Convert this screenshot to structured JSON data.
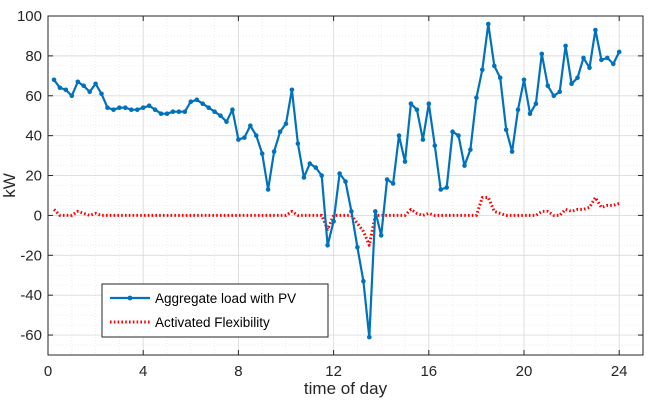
{
  "chart_data": {
    "type": "line",
    "title": "",
    "xlabel": "time of day",
    "ylabel": "kW",
    "xlim": [
      0,
      25
    ],
    "ylim": [
      -70,
      100
    ],
    "xticks": [
      0,
      4,
      8,
      12,
      16,
      20,
      24
    ],
    "xtick_labels": [
      "0",
      "4",
      "8",
      "12",
      "16",
      "20",
      "24"
    ],
    "yticks": [
      100,
      80,
      60,
      40,
      20,
      0,
      -20,
      -40,
      -60
    ],
    "ytick_labels": [
      "100",
      "80",
      "60",
      "40",
      "20",
      "0",
      "-20",
      "-40",
      "-60"
    ],
    "grid": true,
    "minor_grid": true,
    "legend_position": "lower-left",
    "series": [
      {
        "name": "Aggregate load with PV",
        "color": "#0072BD",
        "style": "solid-dot",
        "x": [
          0.25,
          0.5,
          0.75,
          1.0,
          1.25,
          1.5,
          1.75,
          2.0,
          2.25,
          2.5,
          2.75,
          3.0,
          3.25,
          3.5,
          3.75,
          4.0,
          4.25,
          4.5,
          4.75,
          5.0,
          5.25,
          5.5,
          5.75,
          6.0,
          6.25,
          6.5,
          6.75,
          7.0,
          7.25,
          7.5,
          7.75,
          8.0,
          8.25,
          8.5,
          8.75,
          9.0,
          9.25,
          9.5,
          9.75,
          10.0,
          10.25,
          10.5,
          10.75,
          11.0,
          11.25,
          11.5,
          11.75,
          12.0,
          12.25,
          12.5,
          12.75,
          13.0,
          13.25,
          13.5,
          13.75,
          14.0,
          14.25,
          14.5,
          14.75,
          15.0,
          15.25,
          15.5,
          15.75,
          16.0,
          16.25,
          16.5,
          16.75,
          17.0,
          17.25,
          17.5,
          17.75,
          18.0,
          18.25,
          18.5,
          18.75,
          19.0,
          19.25,
          19.5,
          19.75,
          20.0,
          20.25,
          20.5,
          20.75,
          21.0,
          21.25,
          21.5,
          21.75,
          22.0,
          22.25,
          22.5,
          22.75,
          23.0,
          23.25,
          23.5,
          23.75,
          24.0
        ],
        "y": [
          68,
          64,
          63,
          60,
          67,
          65,
          62,
          66,
          61,
          54,
          53,
          54,
          54,
          53,
          53,
          54,
          55,
          53,
          51,
          51,
          52,
          52,
          52,
          57,
          58,
          56,
          54,
          52,
          50,
          47,
          53,
          38,
          39,
          45,
          40,
          31,
          13,
          32,
          42,
          46,
          63,
          36,
          19,
          26,
          24,
          20,
          -15,
          -3,
          21,
          17,
          2,
          -16,
          -33,
          -61,
          2,
          -10,
          18,
          16,
          40,
          27,
          56,
          53,
          38,
          56,
          35,
          13,
          14,
          42,
          40,
          25,
          33,
          59,
          73,
          96,
          75,
          69,
          43,
          32,
          53,
          68,
          51,
          56,
          81,
          65,
          60,
          62,
          85,
          66,
          69,
          79,
          74,
          93,
          78,
          79,
          76,
          82
        ]
      },
      {
        "name": "Activated Flexibility",
        "color": "#FF0000",
        "style": "dotted",
        "x": [
          0.25,
          0.5,
          0.75,
          1.0,
          1.25,
          1.5,
          1.75,
          2.0,
          2.25,
          2.5,
          2.75,
          3.0,
          3.25,
          3.5,
          3.75,
          4.0,
          4.25,
          4.5,
          4.75,
          5.0,
          5.25,
          5.5,
          5.75,
          6.0,
          6.25,
          6.5,
          6.75,
          7.0,
          7.25,
          7.5,
          7.75,
          8.0,
          8.25,
          8.5,
          8.75,
          9.0,
          9.25,
          9.5,
          9.75,
          10.0,
          10.25,
          10.5,
          10.75,
          11.0,
          11.25,
          11.5,
          11.75,
          12.0,
          12.25,
          12.5,
          12.75,
          13.0,
          13.25,
          13.5,
          13.75,
          14.0,
          14.25,
          14.5,
          14.75,
          15.0,
          15.25,
          15.5,
          15.75,
          16.0,
          16.25,
          16.5,
          16.75,
          17.0,
          17.25,
          17.5,
          17.75,
          18.0,
          18.25,
          18.5,
          18.75,
          19.0,
          19.25,
          19.5,
          19.75,
          20.0,
          20.25,
          20.5,
          20.75,
          21.0,
          21.25,
          21.5,
          21.75,
          22.0,
          22.25,
          22.5,
          22.75,
          23.0,
          23.25,
          23.5,
          23.75,
          24.0
        ],
        "y": [
          3,
          0,
          0,
          0,
          2,
          1,
          0,
          1,
          0,
          0,
          0,
          0,
          0,
          0,
          0,
          0,
          0,
          0,
          0,
          0,
          0,
          0,
          0,
          0,
          0,
          0,
          0,
          0,
          0,
          0,
          0,
          0,
          0,
          0,
          0,
          0,
          0,
          0,
          0,
          0,
          2,
          0,
          0,
          0,
          0,
          0,
          -7,
          0,
          0,
          0,
          0,
          -4,
          -8,
          -15,
          0,
          0,
          0,
          0,
          0,
          0,
          3,
          1,
          0,
          1,
          0,
          0,
          0,
          0,
          0,
          0,
          0,
          0,
          9,
          9,
          2,
          1,
          0,
          0,
          0,
          0,
          0,
          0,
          2,
          2,
          0,
          0,
          3,
          2,
          3,
          3,
          4,
          9,
          4,
          5,
          5,
          6
        ]
      }
    ]
  }
}
